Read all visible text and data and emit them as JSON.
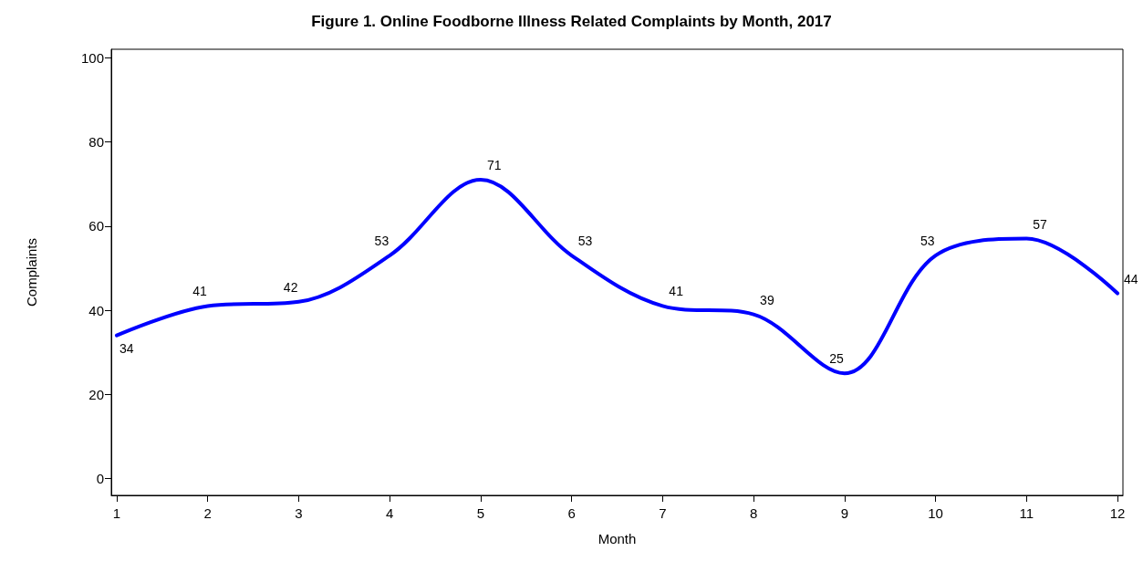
{
  "chart_data": {
    "type": "line",
    "title": "Figure 1. Online Foodborne Illness Related Complaints by Month, 2017",
    "xlabel": "Month",
    "ylabel": "Complaints",
    "x": [
      1,
      2,
      3,
      4,
      5,
      6,
      7,
      8,
      9,
      10,
      11,
      12
    ],
    "series": [
      {
        "color": "#0000ff",
        "values": [
          34,
          41,
          42,
          53,
          71,
          53,
          41,
          39,
          25,
          53,
          57,
          44
        ]
      }
    ],
    "xlim": [
      0.94,
      12.06
    ],
    "xticks": [
      1,
      2,
      3,
      4,
      5,
      6,
      7,
      8,
      9,
      10,
      11,
      12
    ],
    "ylim": [
      -4,
      102
    ],
    "yticks": [
      0,
      20,
      40,
      60,
      80,
      100
    ],
    "grid": false,
    "data_labels": true,
    "line_style": "solid"
  }
}
